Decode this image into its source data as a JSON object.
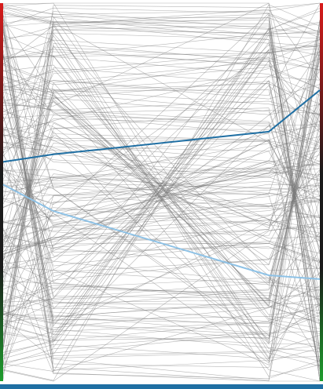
{
  "chart_data": {
    "type": "parallel-coordinates",
    "axes": [
      "",
      "",
      "",
      ""
    ],
    "ylim": [
      0,
      1
    ],
    "background_line_color": "#7a7a7a",
    "highlight_color": "#1f6fa3",
    "faded_highlight_color": "#8ec2e6",
    "axis_bar_palette": {
      "left": {
        "top": "#d81b1b",
        "mid": "#1a1a1a",
        "bottom": "#1f9e2e"
      },
      "right": {
        "top": "#d81b1b",
        "mid": "#1a1a1a",
        "bottom": "#1f9e2e"
      }
    },
    "highlighted_series": [
      {
        "values": [
          0.58,
          0.6,
          0.66,
          0.77
        ]
      },
      {
        "values": [
          0.52,
          0.45,
          0.28,
          0.27
        ]
      }
    ],
    "background_series_count": 220,
    "random_seed": 12345,
    "bottom_bar_color": "#1f6fa3"
  }
}
